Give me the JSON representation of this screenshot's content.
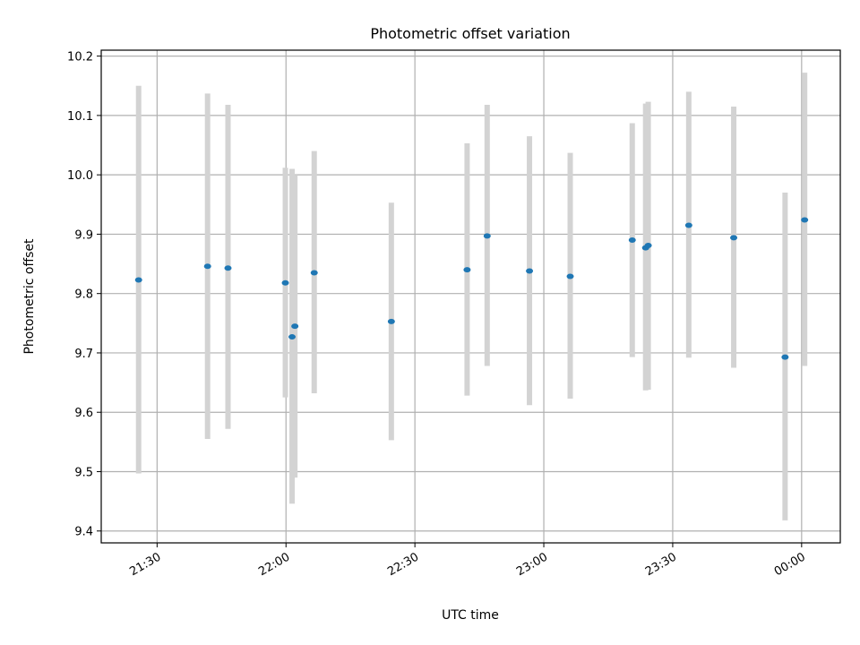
{
  "chart_data": {
    "type": "scatter",
    "title": "Photometric offset variation",
    "xlabel": "UTC time",
    "ylabel": "Photometric offset",
    "grid": true,
    "x_tick_labels": [
      "21:30",
      "22:00",
      "22:30",
      "23:00",
      "23:30",
      "00:00"
    ],
    "y_tick_labels": [
      "9.4",
      "9.5",
      "9.6",
      "9.7",
      "9.8",
      "9.9",
      "10.0",
      "10.1",
      "10.2"
    ],
    "xlim": [
      "21:17",
      "00:09"
    ],
    "ylim": [
      9.38,
      10.21
    ],
    "colors": {
      "points": "#1f77b4",
      "errorbars": "#d3d3d3",
      "grid": "#b0b0b0"
    },
    "points": [
      {
        "x": "21:25:42",
        "y": 9.823,
        "ylo": 9.497,
        "yhi": 10.15
      },
      {
        "x": "21:41:45",
        "y": 9.846,
        "ylo": 9.555,
        "yhi": 10.137
      },
      {
        "x": "21:46:30",
        "y": 9.843,
        "ylo": 9.572,
        "yhi": 10.118
      },
      {
        "x": "21:59:51",
        "y": 9.818,
        "ylo": 9.625,
        "yhi": 10.012
      },
      {
        "x": "22:01:25",
        "y": 9.727,
        "ylo": 9.446,
        "yhi": 10.01
      },
      {
        "x": "22:02:04",
        "y": 9.745,
        "ylo": 9.49,
        "yhi": 10.0
      },
      {
        "x": "22:06:34",
        "y": 9.835,
        "ylo": 9.632,
        "yhi": 10.04
      },
      {
        "x": "22:24:31",
        "y": 9.753,
        "ylo": 9.553,
        "yhi": 9.953
      },
      {
        "x": "22:42:09",
        "y": 9.84,
        "ylo": 9.628,
        "yhi": 10.053
      },
      {
        "x": "22:46:49",
        "y": 9.897,
        "ylo": 9.678,
        "yhi": 10.118
      },
      {
        "x": "22:56:40",
        "y": 9.838,
        "ylo": 9.612,
        "yhi": 10.065
      },
      {
        "x": "23:06:09",
        "y": 9.829,
        "ylo": 9.623,
        "yhi": 10.037
      },
      {
        "x": "23:20:35",
        "y": 9.89,
        "ylo": 9.693,
        "yhi": 10.087
      },
      {
        "x": "23:23:42",
        "y": 9.877,
        "ylo": 9.637,
        "yhi": 10.12
      },
      {
        "x": "23:24:18",
        "y": 9.881,
        "ylo": 9.638,
        "yhi": 10.123
      },
      {
        "x": "23:33:44",
        "y": 9.915,
        "ylo": 9.692,
        "yhi": 10.14
      },
      {
        "x": "23:44:12",
        "y": 9.894,
        "ylo": 9.675,
        "yhi": 10.115
      },
      {
        "x": "23:56:09",
        "y": 9.693,
        "ylo": 9.418,
        "yhi": 9.97
      },
      {
        "x": "00:00:42",
        "y": 9.924,
        "ylo": 9.678,
        "yhi": 10.172
      }
    ]
  }
}
